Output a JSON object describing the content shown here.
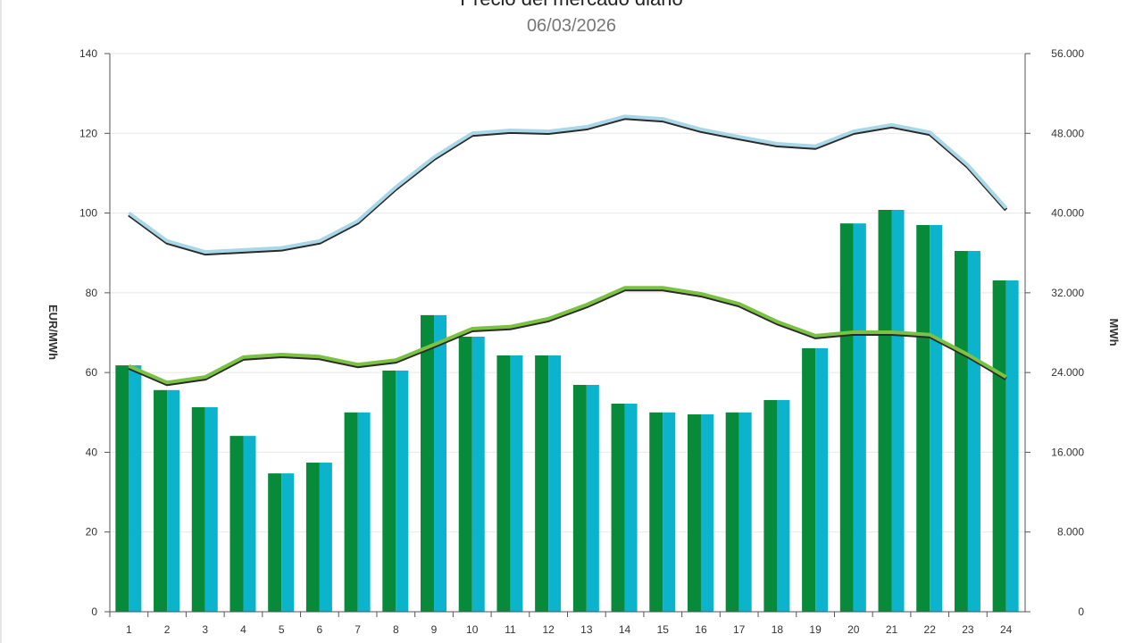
{
  "chart_data": {
    "type": "bar",
    "title": "Precio del mercado diario",
    "subtitle": "06/03/2026",
    "ylabel": "EUR/MWh",
    "y2label": "MWh",
    "ylim": [
      0,
      140
    ],
    "y2lim": [
      0,
      56000
    ],
    "yticks": [
      "0",
      "20",
      "40",
      "60",
      "80",
      "100",
      "120",
      "140"
    ],
    "y2ticks": [
      "0",
      "8.000",
      "16.000",
      "24.000",
      "32.000",
      "40.000",
      "48.000",
      "56.000"
    ],
    "grid": true,
    "categories": [
      "1",
      "2",
      "3",
      "4",
      "5",
      "6",
      "7",
      "8",
      "9",
      "10",
      "11",
      "12",
      "13",
      "14",
      "15",
      "16",
      "17",
      "18",
      "19",
      "20",
      "21",
      "22",
      "23",
      "24"
    ],
    "series": [
      {
        "type": "bar",
        "axis": "left",
        "color": "#078a3a",
        "values": [
          61.8,
          55.6,
          51.3,
          44.1,
          34.7,
          37.4,
          50.0,
          60.5,
          74.4,
          69.0,
          64.3,
          64.3,
          56.9,
          52.2,
          50.0,
          49.5,
          50.0,
          53.1,
          66.1,
          97.4,
          100.8,
          97.0,
          90.5,
          83.1
        ]
      },
      {
        "type": "bar",
        "axis": "left",
        "color": "#0bb3cc",
        "values": [
          61.8,
          55.6,
          51.3,
          44.1,
          34.7,
          37.4,
          50.0,
          60.5,
          74.4,
          69.0,
          64.3,
          64.3,
          56.9,
          52.2,
          50.0,
          49.5,
          50.0,
          53.1,
          66.1,
          97.4,
          100.8,
          97.0,
          90.5,
          83.1
        ]
      },
      {
        "type": "line",
        "axis": "right",
        "color": "#a8d8e8",
        "values": [
          40000,
          37200,
          36100,
          36300,
          36500,
          37200,
          39200,
          42600,
          45600,
          48000,
          48300,
          48200,
          48650,
          49700,
          49450,
          48400,
          47650,
          46950,
          46700,
          48200,
          48850,
          48100,
          44800,
          40500
        ]
      },
      {
        "type": "line",
        "axis": "right",
        "color": "#7cc242",
        "values": [
          24650,
          23000,
          23550,
          25550,
          25800,
          25600,
          24800,
          25250,
          26800,
          28400,
          28600,
          29400,
          30800,
          32500,
          32500,
          31900,
          30900,
          29100,
          27700,
          28050,
          28050,
          27800,
          25800,
          23550
        ]
      }
    ]
  }
}
